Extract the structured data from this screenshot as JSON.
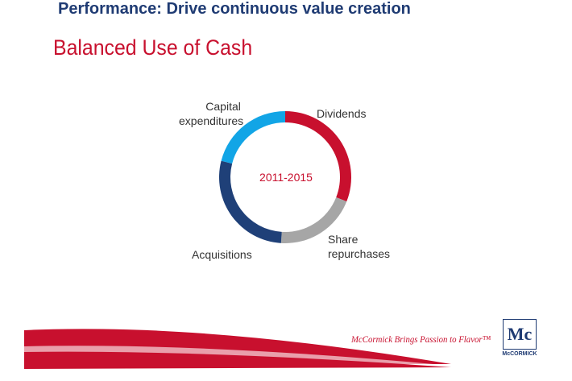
{
  "header": {
    "title": "Performance: Drive continuous value creation"
  },
  "slide": {
    "subtitle": "Balanced Use of Cash"
  },
  "chart_data": {
    "type": "pie",
    "variant": "donut",
    "center_label": "2011-2015",
    "categories": [
      "Dividends",
      "Share repurchases",
      "Acquisitions",
      "Capital expenditures"
    ],
    "values": [
      31,
      20,
      28,
      21
    ],
    "unit": "approximate share of cash use (%) estimated from the slice sizes",
    "colors": [
      "#c8102e",
      "#a6a6a6",
      "#1f4078",
      "#12a5e6"
    ],
    "labels_display": [
      [
        "Dividends"
      ],
      [
        "Share",
        "repurchases"
      ],
      [
        "Acquisitions"
      ],
      [
        "Capital",
        "expenditures"
      ]
    ]
  },
  "footer": {
    "tagline": "McCormick Brings Passion to Flavor™",
    "logo_mark": "Mc",
    "logo_text": "McCORMICK"
  }
}
